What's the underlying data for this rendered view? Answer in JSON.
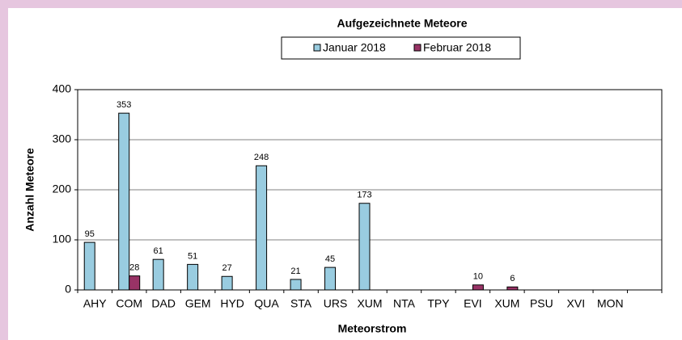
{
  "chart_data": {
    "type": "bar",
    "title": "Aufgezeichnete Meteore",
    "x_label": "Meteorstrom",
    "y_label": "Anzahl Meteore",
    "categories": [
      "AHY",
      "COM",
      "DAD",
      "GEM",
      "HYD",
      "QUA",
      "STA",
      "URS",
      "XUM",
      "NTA",
      "TPY",
      "EVI",
      "XUM",
      "PSU",
      "XVI",
      "MON",
      null
    ],
    "series": [
      {
        "name": "Januar 2018",
        "color": "#99cce0",
        "values": [
          95,
          353,
          61,
          51,
          27,
          248,
          21,
          45,
          173,
          null,
          null,
          null,
          null,
          null,
          null,
          null,
          null
        ]
      },
      {
        "name": "Februar 2018",
        "color": "#993366",
        "values": [
          null,
          28,
          null,
          null,
          null,
          null,
          null,
          null,
          null,
          null,
          null,
          10,
          6,
          null,
          null,
          null,
          null
        ]
      }
    ],
    "ylim": [
      0,
      400
    ],
    "yticks": [
      0,
      100,
      200,
      300,
      400
    ],
    "grid": true,
    "legend": "top"
  }
}
